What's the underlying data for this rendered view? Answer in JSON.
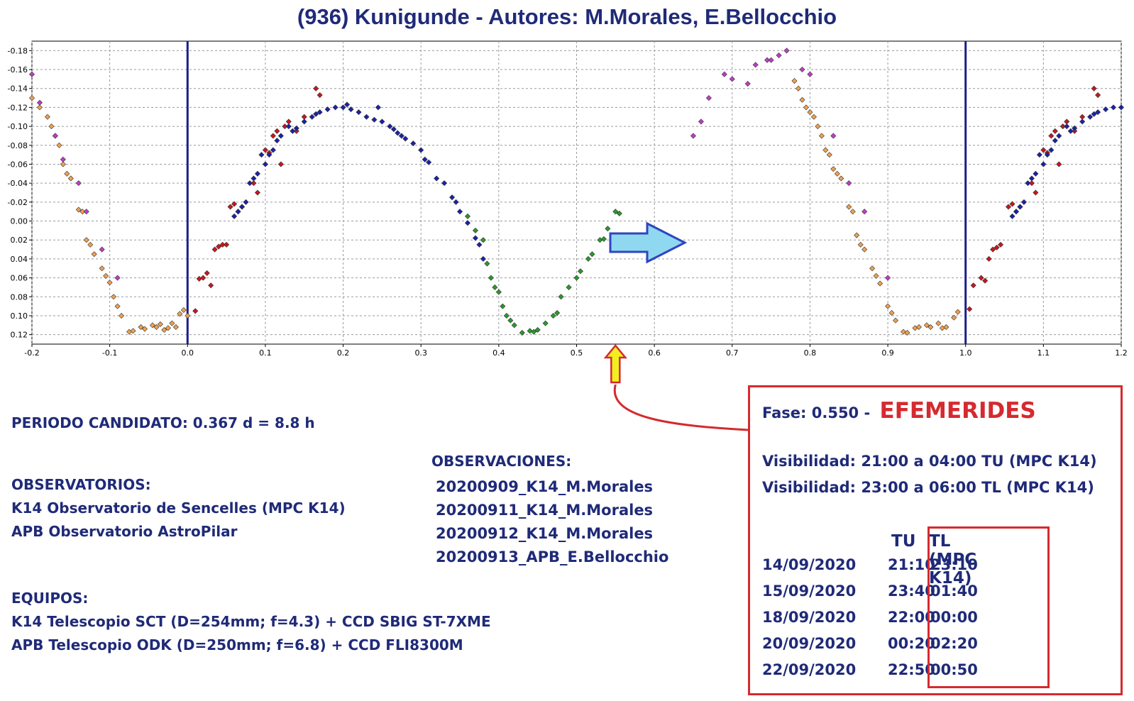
{
  "title": "(936) Kunigunde - Autores: M.Morales, E.Bellocchio",
  "chart_data": {
    "type": "scatter",
    "xlim": [
      -0.2,
      1.2
    ],
    "ylim": [
      0.13,
      -0.19
    ],
    "y_reversed": true,
    "grid": true,
    "x_ticks": [
      "-0.2",
      "-0.1",
      "0.0",
      "0.1",
      "0.2",
      "0.3",
      "0.4",
      "0.5",
      "0.6",
      "0.7",
      "0.8",
      "0.9",
      "1.0",
      "1.1",
      "1.2"
    ],
    "y_ticks": [
      "-0.18",
      "-0.16",
      "-0.14",
      "-0.12",
      "-0.10",
      "-0.08",
      "-0.06",
      "-0.04",
      "-0.02",
      "0.00",
      "0.02",
      "0.04",
      "0.06",
      "0.08",
      "0.10",
      "0.12"
    ],
    "vlines": [
      0.0,
      1.0
    ],
    "series": [
      {
        "color": "#f0a050",
        "points": [
          [
            -0.2,
            -0.13
          ],
          [
            -0.19,
            -0.12
          ],
          [
            -0.18,
            -0.11
          ],
          [
            -0.175,
            -0.1
          ],
          [
            -0.17,
            -0.09
          ],
          [
            -0.165,
            -0.08
          ],
          [
            -0.16,
            -0.06
          ],
          [
            -0.155,
            -0.05
          ],
          [
            -0.15,
            -0.045
          ],
          [
            -0.14,
            -0.012
          ],
          [
            -0.135,
            -0.01
          ],
          [
            -0.13,
            0.02
          ],
          [
            -0.125,
            0.025
          ],
          [
            -0.12,
            0.035
          ],
          [
            -0.11,
            0.05
          ],
          [
            -0.105,
            0.058
          ],
          [
            -0.1,
            0.065
          ],
          [
            -0.095,
            0.08
          ],
          [
            -0.09,
            0.09
          ],
          [
            -0.085,
            0.1
          ],
          [
            -0.075,
            0.117
          ],
          [
            -0.07,
            0.116
          ],
          [
            -0.06,
            0.112
          ],
          [
            -0.055,
            0.114
          ],
          [
            -0.045,
            0.11
          ],
          [
            -0.04,
            0.112
          ],
          [
            -0.035,
            0.109
          ],
          [
            -0.03,
            0.115
          ],
          [
            -0.025,
            0.113
          ],
          [
            -0.02,
            0.108
          ],
          [
            -0.015,
            0.112
          ],
          [
            -0.01,
            0.098
          ],
          [
            -0.005,
            0.094
          ],
          [
            0.0,
            0.1
          ],
          [
            0.78,
            -0.148
          ],
          [
            0.785,
            -0.14
          ],
          [
            0.79,
            -0.128
          ],
          [
            0.795,
            -0.12
          ],
          [
            0.8,
            -0.115
          ],
          [
            0.805,
            -0.11
          ],
          [
            0.81,
            -0.1
          ],
          [
            0.815,
            -0.09
          ],
          [
            0.82,
            -0.075
          ],
          [
            0.825,
            -0.07
          ],
          [
            0.83,
            -0.055
          ],
          [
            0.835,
            -0.05
          ],
          [
            0.84,
            -0.045
          ],
          [
            0.85,
            -0.015
          ],
          [
            0.855,
            -0.01
          ],
          [
            0.86,
            0.015
          ],
          [
            0.865,
            0.025
          ],
          [
            0.87,
            0.03
          ],
          [
            0.88,
            0.05
          ],
          [
            0.885,
            0.058
          ],
          [
            0.89,
            0.066
          ],
          [
            0.9,
            0.09
          ],
          [
            0.905,
            0.097
          ],
          [
            0.91,
            0.105
          ],
          [
            0.92,
            0.117
          ],
          [
            0.925,
            0.118
          ],
          [
            0.935,
            0.113
          ],
          [
            0.94,
            0.112
          ],
          [
            0.95,
            0.11
          ],
          [
            0.955,
            0.112
          ],
          [
            0.965,
            0.108
          ],
          [
            0.97,
            0.113
          ],
          [
            0.975,
            0.112
          ],
          [
            0.985,
            0.102
          ],
          [
            0.99,
            0.096
          ]
        ]
      },
      {
        "color": "#c8161d",
        "points": [
          [
            0.01,
            0.095
          ],
          [
            0.015,
            0.061
          ],
          [
            0.02,
            0.06
          ],
          [
            0.025,
            0.055
          ],
          [
            0.03,
            0.068
          ],
          [
            0.035,
            0.03
          ],
          [
            0.04,
            0.027
          ],
          [
            0.045,
            0.025
          ],
          [
            0.05,
            0.025
          ],
          [
            0.055,
            -0.015
          ],
          [
            0.06,
            -0.018
          ],
          [
            0.065,
            -0.01
          ],
          [
            0.07,
            -0.015
          ],
          [
            0.085,
            -0.04
          ],
          [
            0.09,
            -0.03
          ],
          [
            0.1,
            -0.075
          ],
          [
            0.105,
            -0.072
          ],
          [
            0.11,
            -0.09
          ],
          [
            0.115,
            -0.095
          ],
          [
            0.12,
            -0.06
          ],
          [
            0.125,
            -0.1
          ],
          [
            0.13,
            -0.105
          ],
          [
            0.14,
            -0.095
          ],
          [
            0.15,
            -0.11
          ],
          [
            0.165,
            -0.14
          ],
          [
            0.17,
            -0.133
          ],
          [
            1.005,
            0.093
          ],
          [
            1.01,
            0.068
          ],
          [
            1.02,
            0.06
          ],
          [
            1.025,
            0.063
          ],
          [
            1.03,
            0.04
          ],
          [
            1.035,
            0.03
          ],
          [
            1.04,
            0.028
          ],
          [
            1.045,
            0.025
          ],
          [
            1.055,
            -0.015
          ],
          [
            1.06,
            -0.018
          ],
          [
            1.065,
            -0.01
          ],
          [
            1.07,
            -0.015
          ],
          [
            1.085,
            -0.04
          ],
          [
            1.09,
            -0.03
          ],
          [
            1.1,
            -0.075
          ],
          [
            1.105,
            -0.072
          ],
          [
            1.11,
            -0.09
          ],
          [
            1.115,
            -0.095
          ],
          [
            1.12,
            -0.06
          ],
          [
            1.125,
            -0.1
          ],
          [
            1.13,
            -0.105
          ],
          [
            1.14,
            -0.095
          ],
          [
            1.15,
            -0.11
          ],
          [
            1.165,
            -0.14
          ],
          [
            1.17,
            -0.133
          ]
        ]
      },
      {
        "color": "#1a22a8",
        "points": [
          [
            0.06,
            -0.005
          ],
          [
            0.065,
            -0.01
          ],
          [
            0.07,
            -0.015
          ],
          [
            0.075,
            -0.02
          ],
          [
            0.08,
            -0.04
          ],
          [
            0.085,
            -0.045
          ],
          [
            0.09,
            -0.05
          ],
          [
            0.095,
            -0.07
          ],
          [
            0.1,
            -0.06
          ],
          [
            0.105,
            -0.07
          ],
          [
            0.11,
            -0.075
          ],
          [
            0.115,
            -0.085
          ],
          [
            0.12,
            -0.09
          ],
          [
            0.13,
            -0.1
          ],
          [
            0.135,
            -0.095
          ],
          [
            0.14,
            -0.098
          ],
          [
            0.15,
            -0.105
          ],
          [
            0.16,
            -0.11
          ],
          [
            0.165,
            -0.113
          ],
          [
            0.17,
            -0.115
          ],
          [
            0.18,
            -0.118
          ],
          [
            0.19,
            -0.12
          ],
          [
            0.2,
            -0.12
          ],
          [
            0.205,
            -0.123
          ],
          [
            0.21,
            -0.118
          ],
          [
            0.22,
            -0.115
          ],
          [
            0.23,
            -0.11
          ],
          [
            0.24,
            -0.107
          ],
          [
            0.245,
            -0.12
          ],
          [
            0.25,
            -0.105
          ],
          [
            0.26,
            -0.1
          ],
          [
            0.265,
            -0.097
          ],
          [
            0.27,
            -0.093
          ],
          [
            0.275,
            -0.09
          ],
          [
            0.28,
            -0.087
          ],
          [
            0.29,
            -0.082
          ],
          [
            0.3,
            -0.075
          ],
          [
            0.305,
            -0.065
          ],
          [
            0.31,
            -0.062
          ],
          [
            0.32,
            -0.045
          ],
          [
            0.33,
            -0.04
          ],
          [
            0.34,
            -0.025
          ],
          [
            0.345,
            -0.02
          ],
          [
            0.35,
            -0.01
          ],
          [
            0.36,
            0.002
          ],
          [
            0.37,
            0.018
          ],
          [
            0.375,
            0.025
          ],
          [
            0.38,
            0.04
          ],
          [
            1.06,
            -0.005
          ],
          [
            1.065,
            -0.01
          ],
          [
            1.07,
            -0.015
          ],
          [
            1.075,
            -0.02
          ],
          [
            1.08,
            -0.04
          ],
          [
            1.085,
            -0.045
          ],
          [
            1.09,
            -0.05
          ],
          [
            1.095,
            -0.07
          ],
          [
            1.1,
            -0.06
          ],
          [
            1.105,
            -0.07
          ],
          [
            1.11,
            -0.075
          ],
          [
            1.115,
            -0.085
          ],
          [
            1.12,
            -0.09
          ],
          [
            1.13,
            -0.1
          ],
          [
            1.135,
            -0.095
          ],
          [
            1.14,
            -0.098
          ],
          [
            1.15,
            -0.105
          ],
          [
            1.16,
            -0.11
          ],
          [
            1.165,
            -0.113
          ],
          [
            1.17,
            -0.115
          ],
          [
            1.18,
            -0.118
          ],
          [
            1.19,
            -0.12
          ],
          [
            1.2,
            -0.12
          ]
        ]
      },
      {
        "color": "#2a9a2a",
        "points": [
          [
            0.36,
            -0.005
          ],
          [
            0.37,
            0.01
          ],
          [
            0.38,
            0.02
          ],
          [
            0.385,
            0.045
          ],
          [
            0.39,
            0.06
          ],
          [
            0.395,
            0.07
          ],
          [
            0.4,
            0.075
          ],
          [
            0.405,
            0.09
          ],
          [
            0.41,
            0.1
          ],
          [
            0.415,
            0.105
          ],
          [
            0.42,
            0.11
          ],
          [
            0.43,
            0.118
          ],
          [
            0.44,
            0.116
          ],
          [
            0.445,
            0.117
          ],
          [
            0.45,
            0.115
          ],
          [
            0.46,
            0.108
          ],
          [
            0.47,
            0.1
          ],
          [
            0.475,
            0.097
          ],
          [
            0.48,
            0.08
          ],
          [
            0.49,
            0.07
          ],
          [
            0.5,
            0.06
          ],
          [
            0.505,
            0.053
          ],
          [
            0.515,
            0.04
          ],
          [
            0.52,
            0.035
          ],
          [
            0.53,
            0.02
          ],
          [
            0.535,
            0.019
          ],
          [
            0.54,
            0.008
          ],
          [
            0.55,
            -0.01
          ],
          [
            0.555,
            -0.008
          ]
        ]
      },
      {
        "color": "#c03cc8",
        "points": [
          [
            -0.2,
            -0.155
          ],
          [
            -0.19,
            -0.125
          ],
          [
            -0.17,
            -0.09
          ],
          [
            -0.16,
            -0.065
          ],
          [
            -0.14,
            -0.04
          ],
          [
            -0.13,
            -0.01
          ],
          [
            -0.11,
            0.03
          ],
          [
            -0.09,
            0.06
          ],
          [
            0.65,
            -0.09
          ],
          [
            0.66,
            -0.105
          ],
          [
            0.67,
            -0.13
          ],
          [
            0.69,
            -0.155
          ],
          [
            0.7,
            -0.15
          ],
          [
            0.72,
            -0.145
          ],
          [
            0.73,
            -0.165
          ],
          [
            0.745,
            -0.17
          ],
          [
            0.75,
            -0.17
          ],
          [
            0.76,
            -0.175
          ],
          [
            0.77,
            -0.18
          ],
          [
            0.79,
            -0.16
          ],
          [
            0.8,
            -0.155
          ],
          [
            0.83,
            -0.09
          ],
          [
            0.85,
            -0.04
          ],
          [
            0.87,
            -0.01
          ],
          [
            0.9,
            0.06
          ]
        ]
      }
    ]
  },
  "arrow": {
    "color": "#90d8f0",
    "stroke": "#2f45c0"
  },
  "phase_marker": {
    "x": 0.55,
    "color": "#f0f020",
    "stroke": "#d52a2f"
  },
  "periodo": "PERIODO CANDIDATO: 0.367 d = 8.8 h",
  "observatorios": {
    "title": "OBSERVATORIOS:",
    "line1": "K14 Observatorio de Sencelles (MPC K14)",
    "line2": "APB Observatorio AstroPilar"
  },
  "equipos": {
    "title": "EQUIPOS:",
    "line1": "K14 Telescopio SCT (D=254mm; f=4.3) + CCD SBIG ST-7XME",
    "line2": "APB Telescopio ODK (D=250mm; f=6.8) + CCD FLI8300M"
  },
  "observaciones": {
    "title": "OBSERVACIONES:",
    "items": [
      "20200909_K14_M.Morales",
      "20200911_K14_M.Morales",
      "20200912_K14_M.Morales",
      "20200913_APB_E.Bellocchio"
    ]
  },
  "efemerides": {
    "phase": "Fase: 0.550  -",
    "heading": "EFEMERIDES",
    "vis_tu": "Visibilidad: 21:00 a 04:00 TU (MPC K14)",
    "vis_tl": "Visibilidad: 23:00 a 06:00 TL (MPC K14)",
    "header_tu": "TU",
    "header_tl": "TL (MPC K14)",
    "rows": [
      {
        "date": "14/09/2020",
        "tu": "21:10",
        "tl": "23:10"
      },
      {
        "date": "15/09/2020",
        "tu": "23:40",
        "tl": "01:40"
      },
      {
        "date": "18/09/2020",
        "tu": "22:00",
        "tl": "00:00"
      },
      {
        "date": "20/09/2020",
        "tu": "00:20",
        "tl": "02:20"
      },
      {
        "date": "22/09/2020",
        "tu": "22:50",
        "tl": "00:50"
      }
    ]
  },
  "colors": {
    "text": "#1f2a78",
    "accent_red": "#d52a2f",
    "vline": "#1a1e8a"
  }
}
